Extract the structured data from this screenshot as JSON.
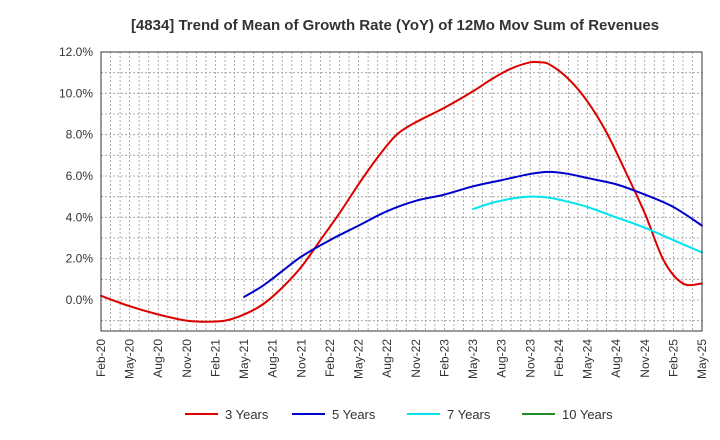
{
  "chart_data": {
    "type": "line",
    "title": "[4834]  Trend of Mean of Growth Rate (YoY) of 12Mo Mov Sum of Revenues",
    "xlabel": "",
    "ylabel": "",
    "ylim": [
      -1.5,
      12.0
    ],
    "yticks": [
      0,
      2,
      4,
      6,
      8,
      10,
      12
    ],
    "y_tick_labels": [
      "0.0%",
      "2.0%",
      "4.0%",
      "6.0%",
      "8.0%",
      "10.0%",
      "12.0%"
    ],
    "x_tick_labels": [
      "Feb-20",
      "May-20",
      "Aug-20",
      "Nov-20",
      "Feb-21",
      "May-21",
      "Aug-21",
      "Nov-21",
      "Feb-22",
      "May-22",
      "Aug-22",
      "Nov-22",
      "Feb-23",
      "May-23",
      "Aug-23",
      "Nov-23",
      "Feb-24",
      "May-24",
      "Aug-24",
      "Nov-24",
      "Feb-25",
      "May-25"
    ],
    "x_unit": "months since Feb-20",
    "xlim": [
      0,
      63
    ],
    "grid": true,
    "legend_position": "bottom",
    "series": [
      {
        "name": "3 Years",
        "color": "#dd0000",
        "x": [
          0,
          3,
          6,
          9,
          11,
          13,
          15,
          17,
          19,
          21,
          23,
          25,
          27,
          29,
          31,
          33,
          36,
          39,
          41,
          43,
          45,
          46,
          47,
          49,
          51,
          53,
          55,
          57,
          59,
          61,
          63
        ],
        "values": [
          0.2,
          -0.3,
          -0.7,
          -1.0,
          -1.05,
          -1.0,
          -0.7,
          -0.2,
          0.6,
          1.6,
          2.9,
          4.2,
          5.6,
          6.9,
          8.0,
          8.6,
          9.3,
          10.1,
          10.7,
          11.2,
          11.5,
          11.5,
          11.4,
          10.7,
          9.6,
          8.1,
          6.2,
          4.2,
          1.9,
          0.8,
          0.8
        ]
      },
      {
        "name": "5 Years",
        "color": "#0000cc",
        "x": [
          15,
          17,
          19,
          21,
          24,
          27,
          30,
          33,
          36,
          39,
          42,
          45,
          47,
          49,
          51,
          54,
          57,
          60,
          63
        ],
        "values": [
          0.15,
          0.7,
          1.4,
          2.1,
          2.9,
          3.6,
          4.3,
          4.8,
          5.1,
          5.5,
          5.8,
          6.1,
          6.2,
          6.1,
          5.9,
          5.6,
          5.1,
          4.5,
          3.6
        ]
      },
      {
        "name": "7 Years",
        "color": "#00e5ee",
        "x": [
          39,
          41,
          43,
          45,
          47,
          49,
          51,
          54,
          57,
          60,
          63
        ],
        "values": [
          4.4,
          4.7,
          4.9,
          5.0,
          4.95,
          4.75,
          4.5,
          4.0,
          3.5,
          2.9,
          2.3
        ]
      },
      {
        "name": "10 Years",
        "color": "#228b22",
        "x": [],
        "values": []
      }
    ]
  }
}
